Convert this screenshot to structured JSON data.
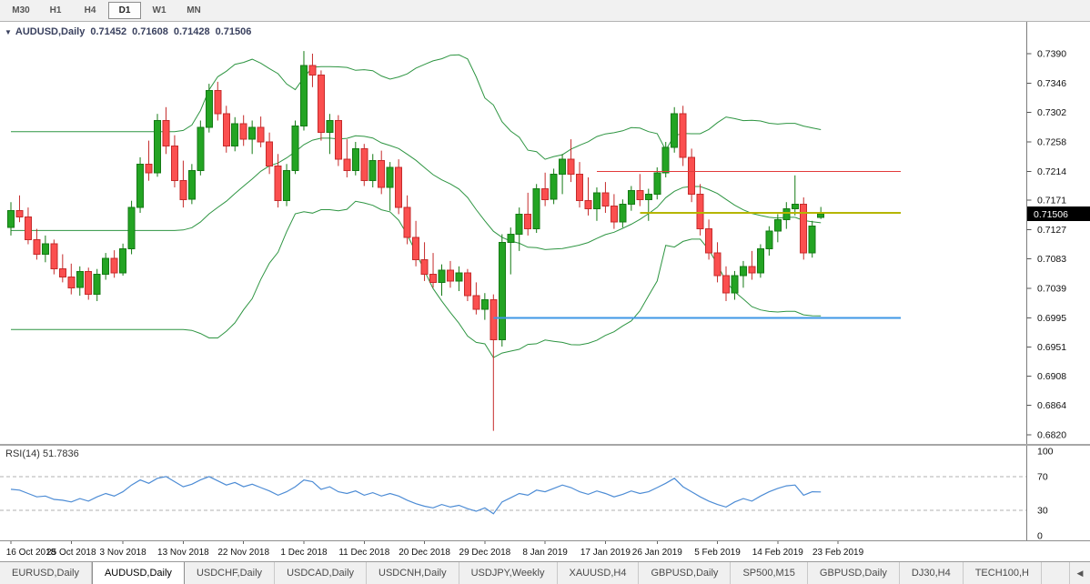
{
  "toolbar": {
    "timeframes": [
      {
        "label": "M30",
        "active": false
      },
      {
        "label": "H1",
        "active": false
      },
      {
        "label": "H4",
        "active": false
      },
      {
        "label": "D1",
        "active": true
      },
      {
        "label": "W1",
        "active": false
      },
      {
        "label": "MN",
        "active": false
      }
    ]
  },
  "chart_header": {
    "symbol": "AUDUSD,Daily",
    "open": "0.71452",
    "high": "0.71608",
    "low": "0.71428",
    "close": "0.71506"
  },
  "rsi_header": "RSI(14) 51.7836",
  "icons": {
    "collapse_triangle": "▼",
    "tab_scroll_left": "◀"
  },
  "colors": {
    "up": "#23a423",
    "up_border": "#147a14",
    "down": "#fb4f4f",
    "down_border": "#c52b2b",
    "bollinger": "#2e9542",
    "rsi_line": "#4d8cd5",
    "axis_text": "#111111",
    "badge_bg": "#000000",
    "badge_text": "#ffffff"
  },
  "chart_data": {
    "type": "candlestick",
    "symbol": "AUDUSD",
    "period": "Daily",
    "title": "AUDUSD,Daily 0.71452 0.71608 0.71428 0.71506",
    "last_ohlc": {
      "open": 0.71452,
      "high": 0.71608,
      "low": 0.71428,
      "close": 0.71506
    },
    "price_badge": "0.71506",
    "ylim": [
      0.682,
      0.739
    ],
    "price_axis": {
      "labels": [
        "0.7390",
        "0.7346",
        "0.7302",
        "0.7258",
        "0.7214",
        "0.7171",
        "0.7127",
        "0.7083",
        "0.7039",
        "0.6995",
        "0.6951",
        "0.6908",
        "0.6864",
        "0.6820"
      ]
    },
    "x_axis": {
      "labels": [
        {
          "text": "16 Oct 2018",
          "i": 0
        },
        {
          "text": "25 Oct 2018",
          "i": 7
        },
        {
          "text": "3 Nov 2018",
          "i": 13
        },
        {
          "text": "13 Nov 2018",
          "i": 20
        },
        {
          "text": "22 Nov 2018",
          "i": 27
        },
        {
          "text": "1 Dec 2018",
          "i": 34
        },
        {
          "text": "11 Dec 2018",
          "i": 41
        },
        {
          "text": "20 Dec 2018",
          "i": 48
        },
        {
          "text": "29 Dec 2018",
          "i": 55
        },
        {
          "text": "8 Jan 2019",
          "i": 62
        },
        {
          "text": "17 Jan 2019",
          "i": 69
        },
        {
          "text": "26 Jan 2019",
          "i": 75
        },
        {
          "text": "5 Feb 2019",
          "i": 82
        },
        {
          "text": "14 Feb 2019",
          "i": 89
        },
        {
          "text": "23 Feb 2019",
          "i": 96
        }
      ]
    },
    "candles": [
      [
        0.713,
        0.7168,
        0.7118,
        0.7155
      ],
      [
        0.7155,
        0.7178,
        0.7138,
        0.7146
      ],
      [
        0.7146,
        0.716,
        0.7105,
        0.7112
      ],
      [
        0.7112,
        0.7128,
        0.7082,
        0.709
      ],
      [
        0.709,
        0.7118,
        0.7078,
        0.7106
      ],
      [
        0.7106,
        0.7112,
        0.706,
        0.7068
      ],
      [
        0.7068,
        0.709,
        0.7048,
        0.7056
      ],
      [
        0.7056,
        0.7076,
        0.703,
        0.704
      ],
      [
        0.704,
        0.7072,
        0.7028,
        0.7064
      ],
      [
        0.7064,
        0.707,
        0.7022,
        0.703
      ],
      [
        0.703,
        0.7068,
        0.702,
        0.706
      ],
      [
        0.706,
        0.7092,
        0.7052,
        0.7084
      ],
      [
        0.7084,
        0.7096,
        0.7055,
        0.7062
      ],
      [
        0.7062,
        0.7106,
        0.7058,
        0.7098
      ],
      [
        0.7098,
        0.717,
        0.709,
        0.716
      ],
      [
        0.716,
        0.7235,
        0.7152,
        0.7225
      ],
      [
        0.7225,
        0.726,
        0.72,
        0.7212
      ],
      [
        0.7212,
        0.73,
        0.7206,
        0.729
      ],
      [
        0.729,
        0.731,
        0.724,
        0.7252
      ],
      [
        0.7252,
        0.7268,
        0.719,
        0.72
      ],
      [
        0.72,
        0.723,
        0.716,
        0.7172
      ],
      [
        0.7172,
        0.7225,
        0.7165,
        0.7215
      ],
      [
        0.7215,
        0.729,
        0.7208,
        0.728
      ],
      [
        0.728,
        0.7345,
        0.7272,
        0.7335
      ],
      [
        0.7335,
        0.7348,
        0.729,
        0.73
      ],
      [
        0.73,
        0.7312,
        0.7242,
        0.7252
      ],
      [
        0.7252,
        0.7295,
        0.7244,
        0.7285
      ],
      [
        0.7285,
        0.7298,
        0.7252,
        0.7262
      ],
      [
        0.7262,
        0.729,
        0.724,
        0.728
      ],
      [
        0.728,
        0.7296,
        0.725,
        0.7258
      ],
      [
        0.7258,
        0.7272,
        0.721,
        0.7222
      ],
      [
        0.7222,
        0.724,
        0.716,
        0.717
      ],
      [
        0.717,
        0.7225,
        0.7162,
        0.7215
      ],
      [
        0.7215,
        0.729,
        0.721,
        0.7282
      ],
      [
        0.7282,
        0.7394,
        0.7275,
        0.7372
      ],
      [
        0.7372,
        0.739,
        0.734,
        0.7358
      ],
      [
        0.7358,
        0.7365,
        0.726,
        0.7272
      ],
      [
        0.7272,
        0.73,
        0.724,
        0.729
      ],
      [
        0.729,
        0.7298,
        0.7222,
        0.7232
      ],
      [
        0.7232,
        0.7262,
        0.7205,
        0.7215
      ],
      [
        0.7215,
        0.7258,
        0.7208,
        0.7248
      ],
      [
        0.7248,
        0.7255,
        0.7192,
        0.72
      ],
      [
        0.72,
        0.724,
        0.719,
        0.723
      ],
      [
        0.723,
        0.7245,
        0.718,
        0.719
      ],
      [
        0.719,
        0.7228,
        0.7155,
        0.722
      ],
      [
        0.722,
        0.7232,
        0.715,
        0.716
      ],
      [
        0.716,
        0.7178,
        0.7105,
        0.7115
      ],
      [
        0.7115,
        0.714,
        0.7072,
        0.7082
      ],
      [
        0.7082,
        0.7108,
        0.705,
        0.706
      ],
      [
        0.706,
        0.7092,
        0.704,
        0.7048
      ],
      [
        0.7048,
        0.7075,
        0.7028,
        0.7066
      ],
      [
        0.7066,
        0.708,
        0.704,
        0.705
      ],
      [
        0.705,
        0.7072,
        0.7035,
        0.7062
      ],
      [
        0.7062,
        0.7068,
        0.702,
        0.7028
      ],
      [
        0.7028,
        0.7048,
        0.7,
        0.7008
      ],
      [
        0.7008,
        0.7032,
        0.6992,
        0.7022
      ],
      [
        0.7022,
        0.703,
        0.6826,
        0.6962
      ],
      [
        0.6962,
        0.712,
        0.6952,
        0.7108
      ],
      [
        0.7108,
        0.713,
        0.706,
        0.712
      ],
      [
        0.712,
        0.716,
        0.7095,
        0.715
      ],
      [
        0.715,
        0.7182,
        0.7118,
        0.7128
      ],
      [
        0.7128,
        0.7195,
        0.7122,
        0.7188
      ],
      [
        0.7188,
        0.7212,
        0.7162,
        0.7172
      ],
      [
        0.7172,
        0.7218,
        0.7165,
        0.721
      ],
      [
        0.721,
        0.724,
        0.718,
        0.7232
      ],
      [
        0.7232,
        0.7262,
        0.7198,
        0.721
      ],
      [
        0.721,
        0.7228,
        0.716,
        0.717
      ],
      [
        0.717,
        0.7205,
        0.7148,
        0.7158
      ],
      [
        0.7158,
        0.719,
        0.714,
        0.7182
      ],
      [
        0.7182,
        0.7198,
        0.7152,
        0.7162
      ],
      [
        0.7162,
        0.718,
        0.7128,
        0.7138
      ],
      [
        0.7138,
        0.7172,
        0.713,
        0.7165
      ],
      [
        0.7165,
        0.7192,
        0.7155,
        0.7185
      ],
      [
        0.7185,
        0.721,
        0.7162,
        0.7172
      ],
      [
        0.7172,
        0.7188,
        0.714,
        0.718
      ],
      [
        0.718,
        0.722,
        0.7172,
        0.7212
      ],
      [
        0.7212,
        0.7258,
        0.7205,
        0.725
      ],
      [
        0.725,
        0.731,
        0.7242,
        0.73
      ],
      [
        0.73,
        0.7312,
        0.7222,
        0.7235
      ],
      [
        0.7235,
        0.7248,
        0.7168,
        0.718
      ],
      [
        0.718,
        0.7195,
        0.7118,
        0.7128
      ],
      [
        0.7128,
        0.7142,
        0.7082,
        0.7092
      ],
      [
        0.7092,
        0.7108,
        0.7048,
        0.7058
      ],
      [
        0.7058,
        0.7072,
        0.702,
        0.7032
      ],
      [
        0.7032,
        0.7065,
        0.7022,
        0.7058
      ],
      [
        0.7058,
        0.708,
        0.704,
        0.7072
      ],
      [
        0.7072,
        0.7095,
        0.7052,
        0.7062
      ],
      [
        0.7062,
        0.7105,
        0.7055,
        0.7098
      ],
      [
        0.7098,
        0.7132,
        0.7088,
        0.7125
      ],
      [
        0.7125,
        0.715,
        0.7108,
        0.7142
      ],
      [
        0.7142,
        0.7168,
        0.7128,
        0.7158
      ],
      [
        0.7158,
        0.7208,
        0.7148,
        0.7165
      ],
      [
        0.7165,
        0.7175,
        0.7082,
        0.7092
      ],
      [
        0.7092,
        0.714,
        0.7085,
        0.7132
      ],
      [
        0.71452,
        0.71608,
        0.71428,
        0.71506
      ]
    ],
    "indicators": {
      "bollinger": {
        "period": 20,
        "deviation": 2
      },
      "rsi": {
        "period": 14,
        "last_value": 51.7836,
        "scale_labels": [
          "100",
          "70",
          "30",
          "0"
        ],
        "levels": [
          70,
          30
        ],
        "values": [
          55,
          54,
          50,
          46,
          47,
          43,
          42,
          40,
          44,
          41,
          46,
          50,
          47,
          52,
          60,
          66,
          62,
          68,
          70,
          64,
          58,
          61,
          66,
          70,
          65,
          60,
          63,
          58,
          61,
          57,
          53,
          48,
          52,
          58,
          66,
          64,
          55,
          58,
          52,
          50,
          53,
          48,
          51,
          47,
          50,
          47,
          42,
          38,
          35,
          33,
          37,
          34,
          36,
          32,
          29,
          33,
          26,
          40,
          45,
          50,
          48,
          54,
          52,
          56,
          60,
          57,
          52,
          49,
          53,
          50,
          46,
          49,
          53,
          50,
          52,
          57,
          62,
          68,
          58,
          52,
          46,
          41,
          37,
          34,
          40,
          44,
          41,
          47,
          52,
          56,
          59,
          60,
          48,
          52,
          51.78
        ]
      }
    },
    "hlines": [
      {
        "name": "resistance-line-red",
        "price": 0.7214,
        "from_i": 68,
        "color": "#e23b3b",
        "width": 1
      },
      {
        "name": "pivot-line-olive",
        "price": 0.7152,
        "from_i": 73,
        "color": "#b5b500",
        "width": 2
      },
      {
        "name": "support-line-blue",
        "price": 0.6995,
        "from_i": 56,
        "color": "#3e97e6",
        "width": 2
      }
    ]
  },
  "tabs": {
    "items": [
      {
        "label": "EURUSD,Daily",
        "active": false
      },
      {
        "label": "AUDUSD,Daily",
        "active": true
      },
      {
        "label": "USDCHF,Daily",
        "active": false
      },
      {
        "label": "USDCAD,Daily",
        "active": false
      },
      {
        "label": "USDCNH,Daily",
        "active": false
      },
      {
        "label": "USDJPY,Weekly",
        "active": false
      },
      {
        "label": "XAUUSD,H4",
        "active": false
      },
      {
        "label": "GBPUSD,Daily",
        "active": false
      },
      {
        "label": "SP500,M15",
        "active": false
      },
      {
        "label": "GBPUSD,Daily",
        "active": false
      },
      {
        "label": "DJ30,H4",
        "active": false
      },
      {
        "label": "TECH100,H",
        "active": false
      }
    ]
  }
}
